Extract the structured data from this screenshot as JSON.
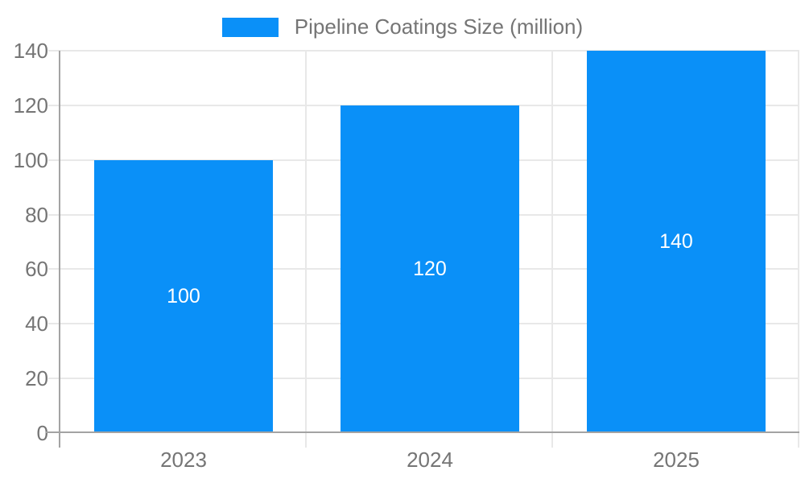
{
  "legend": {
    "label": "Pipeline Coatings Size (million)"
  },
  "chart_data": {
    "type": "bar",
    "title": "",
    "series_name": "Pipeline Coatings Size (million)",
    "categories": [
      "2023",
      "2024",
      "2025"
    ],
    "values": [
      100,
      120,
      140
    ],
    "bar_labels": [
      "100",
      "120",
      "140"
    ],
    "xlabel": "",
    "ylabel": "",
    "ylim": [
      0,
      140
    ],
    "yticks": [
      0,
      20,
      40,
      60,
      80,
      100,
      120,
      140
    ],
    "grid": true,
    "legend_position": "top",
    "colors": {
      "bar": "#0a90f8",
      "bar_label": "#ffffff",
      "axis": "#a3a3a3",
      "gridline": "#e8e8e8",
      "text": "#757575"
    }
  }
}
